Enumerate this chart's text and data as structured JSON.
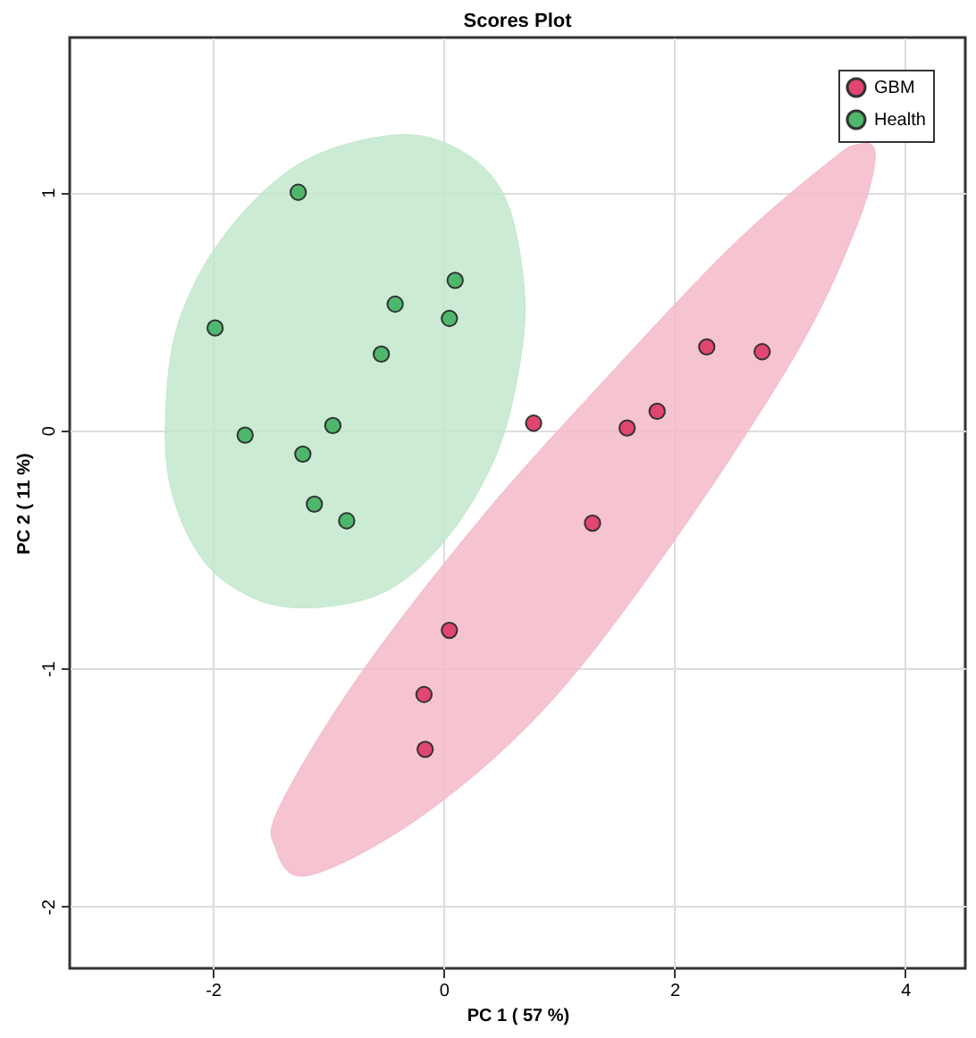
{
  "chart_data": {
    "type": "scatter",
    "title": "Scores Plot",
    "xlabel": "PC 1 ( 57 %)",
    "ylabel": "PC 2 ( 11 %)",
    "xlim": [
      -3.24,
      4.52
    ],
    "ylim": [
      -2.26,
      1.65
    ],
    "xticks": [
      -2,
      0,
      2,
      4
    ],
    "yticks": [
      -2,
      -1,
      0,
      1
    ],
    "grid": true,
    "legend": "top right",
    "marker": "circle",
    "series": [
      {
        "type": "area",
        "marker": "none",
        "color": "#f5b8c8",
        "x": [
          3.74,
          3.58,
          3.05,
          1.96,
          0.89,
          -0.19,
          -1.17,
          -1.46,
          -1.41,
          -0.73,
          0.34,
          1.43,
          2.51,
          3.32,
          3.58
        ],
        "values": [
          1.16,
          0.86,
          0.32,
          -0.49,
          -1.16,
          -1.62,
          -1.87,
          -1.75,
          -1.57,
          -1.03,
          -0.36,
          0.23,
          0.78,
          1.12,
          1.2
        ]
      },
      {
        "type": "area",
        "marker": "none",
        "color": "#c2e8cc",
        "x": [
          -0.44,
          0.13,
          0.53,
          0.7,
          0.65,
          0.45,
          0.05,
          -0.44,
          -1.0,
          -1.57,
          -2.06,
          -2.35,
          -2.41,
          -2.3,
          -1.9,
          -1.25
        ],
        "values": [
          1.24,
          1.18,
          0.98,
          0.59,
          0.25,
          -0.11,
          -0.44,
          -0.66,
          -0.74,
          -0.72,
          -0.56,
          -0.27,
          0.05,
          0.45,
          0.82,
          1.12
        ]
      },
      {
        "name": "GBM",
        "color": "#e0466f",
        "x": [
          0.78,
          2.28,
          2.76,
          1.85,
          1.59,
          1.29,
          0.05,
          -0.17,
          -0.16
        ],
        "values": [
          0.03,
          0.35,
          0.33,
          0.08,
          0.01,
          -0.39,
          -0.84,
          -1.11,
          -1.34
        ]
      },
      {
        "name": "Health",
        "color": "#4db86b",
        "x": [
          -1.26,
          0.1,
          -0.42,
          0.05,
          -0.54,
          -1.98,
          -1.72,
          -0.96,
          -1.22,
          -1.12,
          -0.84
        ],
        "values": [
          1.0,
          0.63,
          0.53,
          0.47,
          0.32,
          0.43,
          -0.02,
          0.02,
          -0.1,
          -0.31,
          -0.38
        ]
      }
    ]
  }
}
